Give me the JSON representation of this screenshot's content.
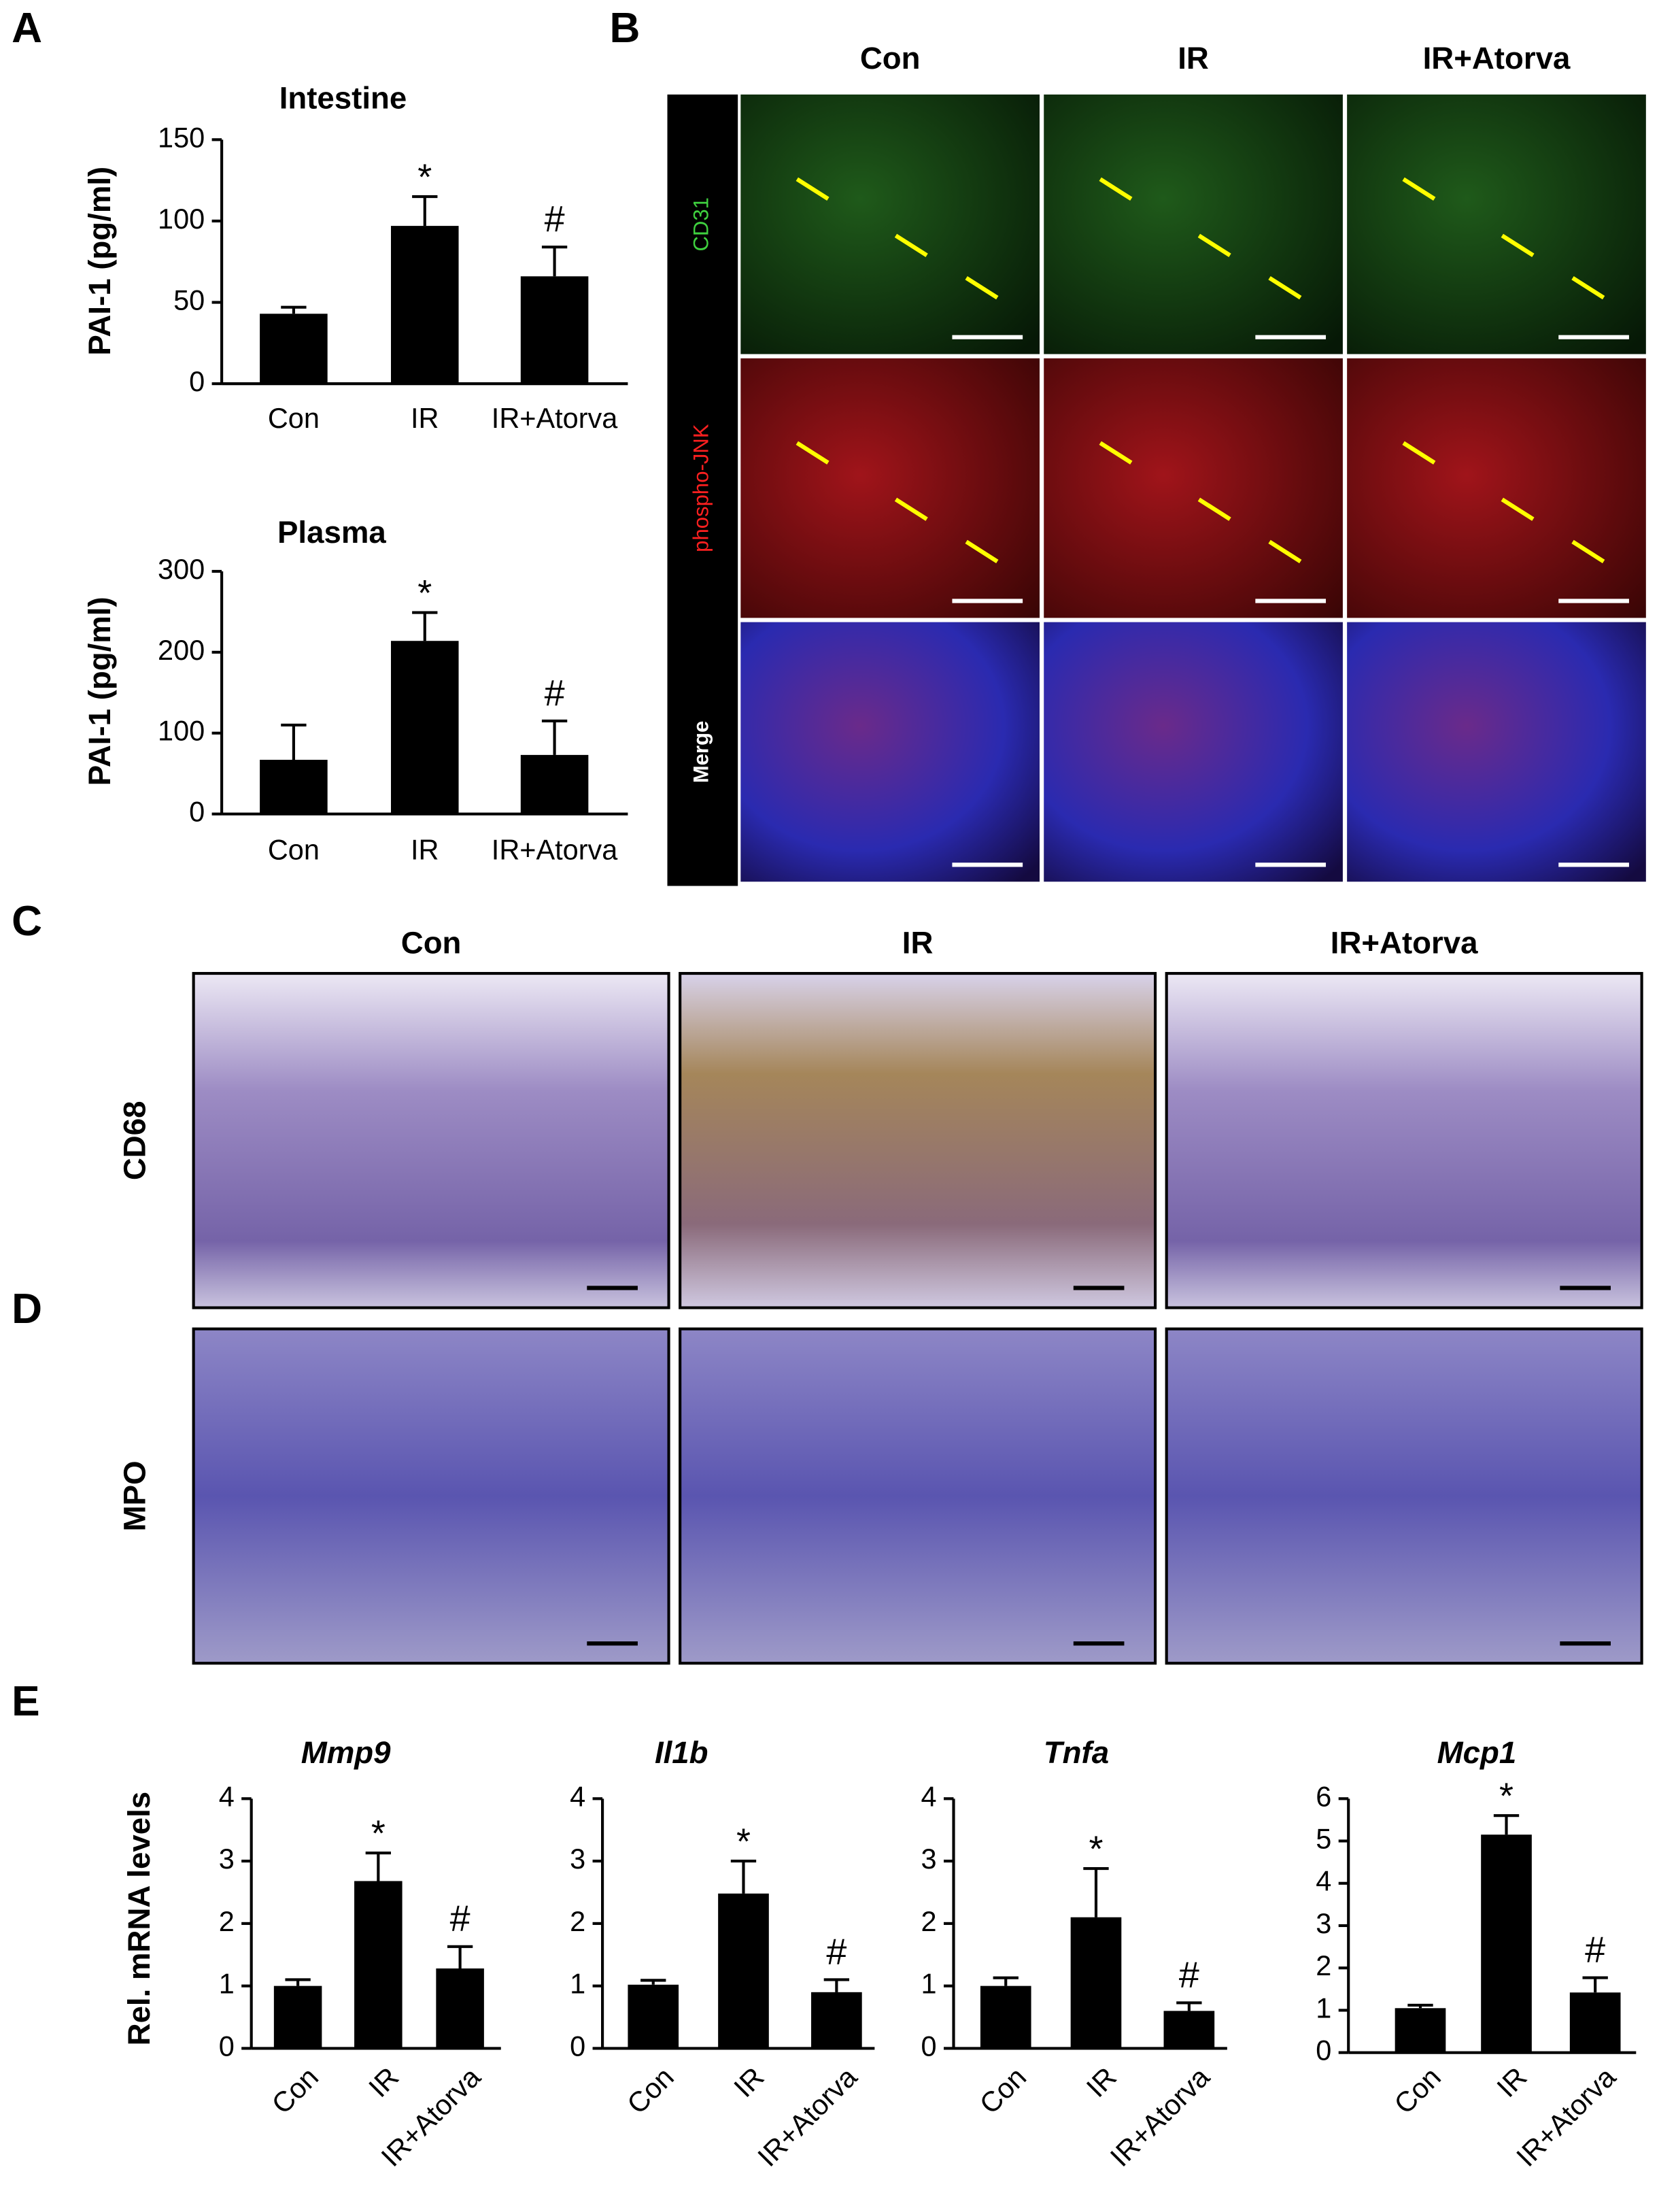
{
  "panel_labels": [
    "A",
    "B",
    "C",
    "D",
    "E"
  ],
  "panel_b": {
    "columns": [
      "Con",
      "IR",
      "IR+Atorva"
    ],
    "rows": [
      "CD31",
      "phospho-JNK",
      "Merge"
    ]
  },
  "panel_cd": {
    "columns": [
      "Con",
      "IR",
      "IR+Atorva"
    ],
    "rows": [
      "CD68",
      "MPO"
    ]
  },
  "chart_data": [
    {
      "type": "bar",
      "title": "Intestine",
      "y_label": "PAI-1 (pg/ml)",
      "categories": [
        "Con",
        "IR",
        "IR+Atorva"
      ],
      "values": [
        43,
        97,
        66
      ],
      "errors": [
        4,
        18,
        18
      ],
      "annotations": [
        null,
        "*",
        "#"
      ],
      "color": "#000000",
      "ylim": [
        0,
        150
      ],
      "yticks": [
        0,
        50,
        100,
        150
      ]
    },
    {
      "type": "bar",
      "title": "Plasma",
      "y_label": "PAI-1 (pg/ml)",
      "categories": [
        "Con",
        "IR",
        "IR+Atorva"
      ],
      "values": [
        67,
        214,
        73
      ],
      "errors": [
        43,
        35,
        42
      ],
      "annotations": [
        null,
        "*",
        "#"
      ],
      "color": "#000000",
      "ylim": [
        0,
        300
      ],
      "yticks": [
        0,
        100,
        200,
        300
      ]
    },
    {
      "type": "bar",
      "title": "Mmp9",
      "y_label": "Rel. mRNA levels",
      "categories": [
        "Con",
        "IR",
        "IR+Atorva"
      ],
      "values": [
        1.0,
        2.68,
        1.28
      ],
      "errors": [
        0.1,
        0.45,
        0.35
      ],
      "annotations": [
        null,
        "*",
        "#"
      ],
      "color": "#000000",
      "ylim": [
        0,
        4
      ],
      "yticks": [
        0,
        1,
        2,
        3,
        4
      ]
    },
    {
      "type": "bar",
      "title": "Il1b",
      "categories": [
        "Con",
        "IR",
        "IR+Atorva"
      ],
      "values": [
        1.02,
        2.48,
        0.9
      ],
      "errors": [
        0.07,
        0.52,
        0.2
      ],
      "annotations": [
        null,
        "*",
        "#"
      ],
      "color": "#000000",
      "ylim": [
        0,
        4
      ],
      "yticks": [
        0,
        1,
        2,
        3,
        4
      ]
    },
    {
      "type": "bar",
      "title": "Tnfa",
      "categories": [
        "Con",
        "IR",
        "IR+Atorva"
      ],
      "values": [
        1.0,
        2.1,
        0.6
      ],
      "errors": [
        0.13,
        0.78,
        0.13
      ],
      "annotations": [
        null,
        "*",
        "#"
      ],
      "color": "#000000",
      "ylim": [
        0,
        4
      ],
      "yticks": [
        0,
        1,
        2,
        3,
        4
      ]
    },
    {
      "type": "bar",
      "title": "Mcp1",
      "categories": [
        "Con",
        "IR",
        "IR+Atorva"
      ],
      "values": [
        1.05,
        5.15,
        1.42
      ],
      "errors": [
        0.07,
        0.45,
        0.35
      ],
      "annotations": [
        null,
        "*",
        "#"
      ],
      "color": "#000000",
      "ylim": [
        0,
        6
      ],
      "yticks": [
        0,
        1,
        2,
        3,
        4,
        5,
        6
      ]
    }
  ]
}
